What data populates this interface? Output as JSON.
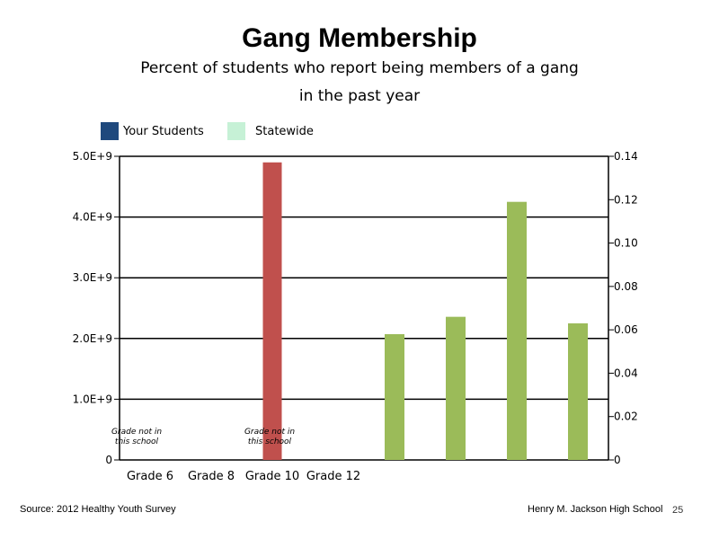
{
  "slide": {
    "title": "Gang Membership",
    "subtitle_line1": "Percent of students who report being members of a gang",
    "subtitle_line2": "in the past year",
    "source": "Source: 2012 Healthy Youth Survey",
    "school": "Henry M. Jackson High School",
    "page_number": "25"
  },
  "legend": [
    {
      "label": "Your Students",
      "color": "#1f497d"
    },
    {
      "label": "Statewide",
      "color": "#c6f1d6"
    }
  ],
  "chart_data": {
    "type": "bar",
    "categories": [
      "Grade 6",
      "Grade 8",
      "Grade 10",
      "Grade 12"
    ],
    "left_axis": {
      "ticks": [
        "0",
        "1.0E+9",
        "2.0E+9",
        "3.0E+9",
        "4.0E+9",
        "5.0E+9"
      ],
      "range": [
        0,
        5000000000
      ]
    },
    "right_axis": {
      "ticks": [
        "0",
        "0.02",
        "0.04",
        "0.06",
        "0.08",
        "0.10",
        "0.12",
        "0.14"
      ],
      "range": [
        0,
        0.14
      ]
    },
    "grid": true,
    "series_left": [
      {
        "category": "Grade 10",
        "value": 4900000000,
        "color": "#c0504d"
      }
    ],
    "series_right": [
      {
        "value": 0.058,
        "color": "#9bbb59"
      },
      {
        "value": 0.066,
        "color": "#9bbb59"
      },
      {
        "value": 0.119,
        "color": "#9bbb59"
      },
      {
        "value": 0.063,
        "color": "#9bbb59"
      }
    ],
    "annotations": [
      {
        "category": "Grade 6",
        "lines": [
          "Grade not in",
          "this school"
        ]
      },
      {
        "category": "Grade 10",
        "lines": [
          "Grade not in",
          "this school"
        ]
      }
    ]
  }
}
